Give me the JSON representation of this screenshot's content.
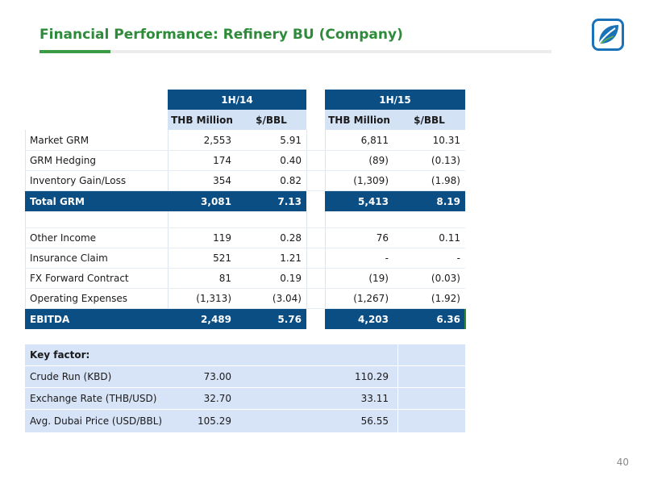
{
  "title": "Financial Performance: Refinery BU (Company)",
  "page_number": "40",
  "logo_icon": "leaf-logo-icon",
  "colors": {
    "title_green": "#2e8b3a",
    "header_navy": "#0b4e84",
    "subheader_blue": "#d3e2f5",
    "panel_blue": "#d7e3f7"
  },
  "table": {
    "periods": [
      "1H/14",
      "1H/15"
    ],
    "subheaders": [
      "THB Million",
      "$/BBL",
      "THB Million",
      "$/BBL"
    ],
    "rows": [
      {
        "label": "Market GRM",
        "values": [
          "2,553",
          "5.91",
          "6,811",
          "10.31"
        ]
      },
      {
        "label": "GRM Hedging",
        "values": [
          "174",
          "0.40",
          "(89)",
          "(0.13)"
        ]
      },
      {
        "label": "Inventory Gain/Loss",
        "values": [
          "354",
          "0.82",
          "(1,309)",
          "(1.98)"
        ]
      },
      {
        "label": "Total GRM",
        "values": [
          "3,081",
          "7.13",
          "5,413",
          "8.19"
        ]
      },
      {
        "label": "Other Income",
        "values": [
          "119",
          "0.28",
          "76",
          "0.11"
        ]
      },
      {
        "label": "Insurance Claim",
        "values": [
          "521",
          "1.21",
          "-",
          "-"
        ]
      },
      {
        "label": "FX Forward Contract",
        "values": [
          "81",
          "0.19",
          "(19)",
          "(0.03)"
        ]
      },
      {
        "label": "Operating Expenses",
        "values": [
          "(1,313)",
          "(3.04)",
          "(1,267)",
          "(1.92)"
        ]
      },
      {
        "label": "EBITDA",
        "values": [
          "2,489",
          "5.76",
          "4,203",
          "6.36"
        ]
      }
    ]
  },
  "key_factors": {
    "title": "Key factor:",
    "rows": [
      {
        "label": "Crude Run (KBD)",
        "values": [
          "73.00",
          "110.29"
        ]
      },
      {
        "label": "Exchange Rate (THB/USD)",
        "values": [
          "32.70",
          "33.11"
        ]
      },
      {
        "label": "Avg. Dubai Price (USD/BBL)",
        "values": [
          "105.29",
          "56.55"
        ]
      }
    ]
  }
}
